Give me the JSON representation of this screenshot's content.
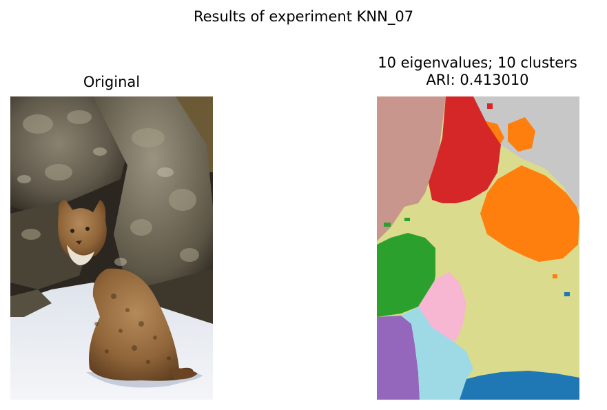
{
  "figure": {
    "suptitle": "Results of experiment KNN_07"
  },
  "panels": [
    {
      "title_lines": [
        "Original"
      ],
      "content": "photograph of a bobcat sitting in snow in front of lichen-covered rocks"
    },
    {
      "title_lines": [
        "10 eigenvalues; 10 clusters",
        "ARI: 0.413010"
      ],
      "content": "segmentation map with 10 colored clusters",
      "cluster_colors": [
        "#c9968d",
        "#d62728",
        "#c7c7c7",
        "#ff7f0e",
        "#dbdb8d",
        "#2ca02c",
        "#f7b6d2",
        "#9467bd",
        "#9edae5",
        "#1f77b4"
      ]
    }
  ]
}
